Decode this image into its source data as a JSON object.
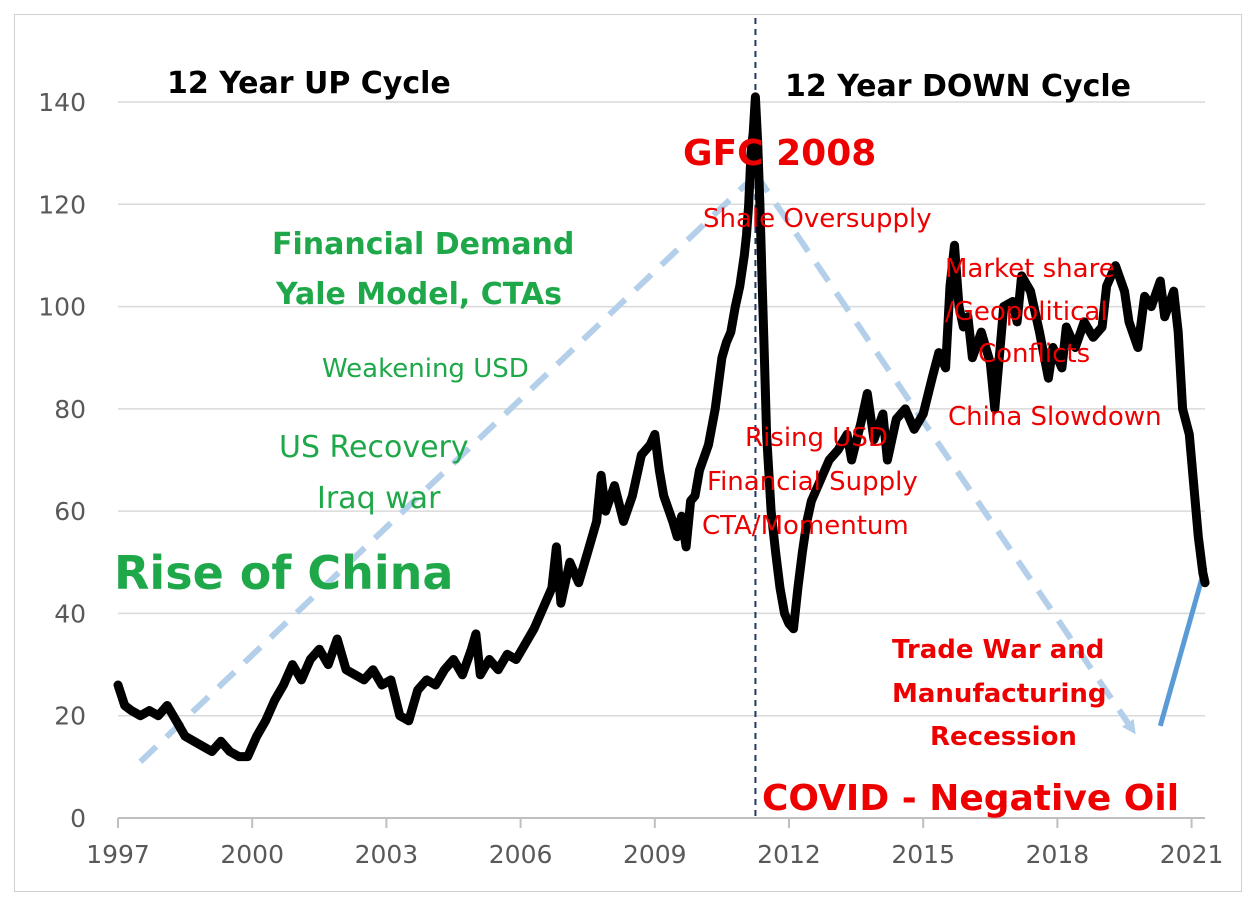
{
  "chart_data": {
    "type": "line",
    "title": "",
    "xlabel": "",
    "ylabel": "",
    "xlim": [
      1997,
      2021.3
    ],
    "ylim": [
      0,
      140
    ],
    "x_ticks": [
      "1997",
      "2000",
      "2003",
      "2006",
      "2009",
      "2012",
      "2015",
      "2018",
      "2021"
    ],
    "y_ticks": [
      "0",
      "20",
      "40",
      "60",
      "80",
      "100",
      "120",
      "140"
    ],
    "grid": "horizontal",
    "legend": "none",
    "series": [
      {
        "line_color": "#000000",
        "points": [
          [
            1997.0,
            26
          ],
          [
            1997.15,
            22
          ],
          [
            1997.3,
            21
          ],
          [
            1997.5,
            20
          ],
          [
            1997.7,
            21
          ],
          [
            1997.9,
            20
          ],
          [
            1998.1,
            22
          ],
          [
            1998.3,
            19
          ],
          [
            1998.5,
            16
          ],
          [
            1998.7,
            15
          ],
          [
            1998.9,
            14
          ],
          [
            1999.1,
            13
          ],
          [
            1999.3,
            15
          ],
          [
            1999.5,
            13
          ],
          [
            1999.7,
            12
          ],
          [
            1999.9,
            12
          ],
          [
            2000.1,
            16
          ],
          [
            2000.3,
            19
          ],
          [
            2000.5,
            23
          ],
          [
            2000.7,
            26
          ],
          [
            2000.9,
            30
          ],
          [
            2001.1,
            27
          ],
          [
            2001.3,
            31
          ],
          [
            2001.5,
            33
          ],
          [
            2001.7,
            30
          ],
          [
            2001.9,
            35
          ],
          [
            2002.1,
            29
          ],
          [
            2002.3,
            28
          ],
          [
            2002.5,
            27
          ],
          [
            2002.7,
            29
          ],
          [
            2002.9,
            26
          ],
          [
            2003.1,
            27
          ],
          [
            2003.3,
            20
          ],
          [
            2003.5,
            19
          ],
          [
            2003.7,
            25
          ],
          [
            2003.9,
            27
          ],
          [
            2004.1,
            26
          ],
          [
            2004.3,
            29
          ],
          [
            2004.5,
            31
          ],
          [
            2004.7,
            28
          ],
          [
            2004.9,
            33
          ],
          [
            2005.0,
            36
          ],
          [
            2005.1,
            28
          ],
          [
            2005.3,
            31
          ],
          [
            2005.5,
            29
          ],
          [
            2005.7,
            32
          ],
          [
            2005.9,
            31
          ],
          [
            2006.1,
            34
          ],
          [
            2006.3,
            37
          ],
          [
            2006.5,
            41
          ],
          [
            2006.7,
            45
          ],
          [
            2006.8,
            53
          ],
          [
            2006.9,
            42
          ],
          [
            2007.1,
            50
          ],
          [
            2007.3,
            46
          ],
          [
            2007.5,
            52
          ],
          [
            2007.7,
            58
          ],
          [
            2007.8,
            67
          ],
          [
            2007.9,
            60
          ],
          [
            2008.1,
            65
          ],
          [
            2008.3,
            58
          ],
          [
            2008.5,
            63
          ],
          [
            2008.7,
            71
          ],
          [
            2008.9,
            73
          ],
          [
            2009.0,
            75
          ],
          [
            2009.1,
            68
          ],
          [
            2009.2,
            63
          ],
          [
            2009.4,
            58
          ],
          [
            2009.5,
            55
          ],
          [
            2009.6,
            59
          ],
          [
            2009.7,
            53
          ],
          [
            2009.8,
            62
          ],
          [
            2009.9,
            63
          ],
          [
            2010.0,
            68
          ],
          [
            2010.2,
            73
          ],
          [
            2010.35,
            80
          ],
          [
            2010.5,
            90
          ],
          [
            2010.6,
            93
          ],
          [
            2010.7,
            95
          ],
          [
            2010.8,
            100
          ],
          [
            2010.9,
            104
          ],
          [
            2011.0,
            110
          ],
          [
            2011.05,
            114
          ],
          [
            2011.1,
            120
          ],
          [
            2011.15,
            130
          ],
          [
            2011.2,
            134
          ],
          [
            2011.25,
            141
          ],
          [
            2011.3,
            132
          ],
          [
            2011.35,
            120
          ],
          [
            2011.4,
            105
          ],
          [
            2011.45,
            90
          ],
          [
            2011.5,
            75
          ],
          [
            2011.6,
            60
          ],
          [
            2011.7,
            52
          ],
          [
            2011.8,
            45
          ],
          [
            2011.9,
            40
          ],
          [
            2012.0,
            38
          ],
          [
            2012.1,
            37
          ],
          [
            2012.2,
            45
          ],
          [
            2012.3,
            52
          ],
          [
            2012.4,
            58
          ],
          [
            2012.5,
            62
          ],
          [
            2012.7,
            66
          ],
          [
            2012.9,
            70
          ],
          [
            2013.1,
            72
          ],
          [
            2013.3,
            75
          ],
          [
            2013.4,
            70
          ],
          [
            2013.6,
            77
          ],
          [
            2013.75,
            83
          ],
          [
            2013.9,
            74
          ],
          [
            2014.1,
            79
          ],
          [
            2014.2,
            70
          ],
          [
            2014.4,
            78
          ],
          [
            2014.6,
            80
          ],
          [
            2014.8,
            76
          ],
          [
            2015.0,
            79
          ],
          [
            2015.2,
            86
          ],
          [
            2015.35,
            91
          ],
          [
            2015.5,
            88
          ],
          [
            2015.6,
            104
          ],
          [
            2015.7,
            112
          ],
          [
            2015.8,
            100
          ],
          [
            2015.9,
            96
          ],
          [
            2016.0,
            98
          ],
          [
            2016.1,
            90
          ],
          [
            2016.3,
            95
          ],
          [
            2016.5,
            89
          ],
          [
            2016.6,
            80
          ],
          [
            2016.8,
            100
          ],
          [
            2017.0,
            101
          ],
          [
            2017.1,
            97
          ],
          [
            2017.2,
            106
          ],
          [
            2017.4,
            103
          ],
          [
            2017.6,
            95
          ],
          [
            2017.8,
            86
          ],
          [
            2017.9,
            92
          ],
          [
            2018.1,
            88
          ],
          [
            2018.2,
            96
          ],
          [
            2018.4,
            92
          ],
          [
            2018.6,
            97
          ],
          [
            2018.8,
            94
          ],
          [
            2019.0,
            96
          ],
          [
            2019.1,
            104
          ],
          [
            2019.3,
            108
          ],
          [
            2019.5,
            103
          ],
          [
            2019.6,
            97
          ],
          [
            2019.8,
            92
          ],
          [
            2019.95,
            102
          ],
          [
            2020.1,
            100
          ],
          [
            2020.3,
            105
          ],
          [
            2020.4,
            98
          ],
          [
            2020.6,
            103
          ],
          [
            2020.7,
            95
          ],
          [
            2020.8,
            80
          ],
          [
            2020.95,
            75
          ],
          [
            2021.05,
            65
          ],
          [
            2021.15,
            55
          ],
          [
            2021.25,
            48
          ],
          [
            2021.3,
            46
          ]
        ]
      }
    ]
  },
  "annotations": {
    "up_cycle": "12 Year UP Cycle",
    "down_cycle": "12 Year DOWN Cycle",
    "gfc": "GFC 2008",
    "shale": "Shale Oversupply",
    "financial_demand_1": "Financial Demand",
    "financial_demand_2": "Yale Model, CTAs",
    "market_share_1": "Market share",
    "market_share_2": "/Geopolitical",
    "market_share_3": "Conflicts",
    "weakening_usd": "Weakening USD",
    "china_slowdown": "China Slowdown",
    "rising_usd": "Rising USD",
    "financial_supply": "Financial Supply",
    "cta_momentum": "CTA/Momentum",
    "us_recovery": "US Recovery",
    "iraq_war": "Iraq war",
    "rise_of_china": "Rise of China",
    "trade_war_1": "Trade War and",
    "trade_war_2": "Manufacturing",
    "trade_war_3": "Recession",
    "covid": "COVID - Negative Oil"
  },
  "colors": {
    "price_line": "#000000",
    "green_text": "#1fa84a",
    "red_text": "#ee0000",
    "trend_dashed": "#b4cfe9",
    "trend_arrow": "#5b9bd5",
    "divider": "#1f3864",
    "grid": "#d9d9d9",
    "tick_text": "#595959"
  }
}
